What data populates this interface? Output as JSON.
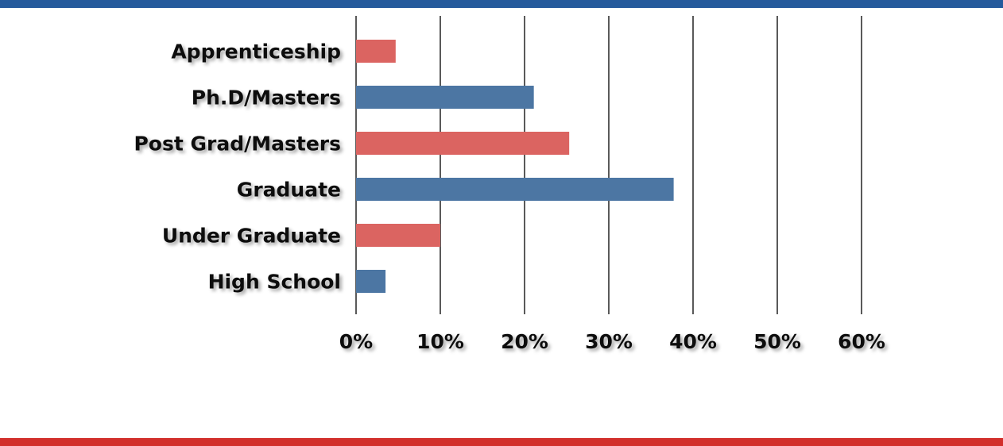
{
  "colors": {
    "top_band": "#255A9C",
    "bottom_band": "#D2302C",
    "red_bar": "#DB6461",
    "blue_bar": "#4C76A3",
    "gridline": "#000000"
  },
  "chart_data": {
    "type": "bar",
    "orientation": "horizontal",
    "categories": [
      "Apprenticeship",
      "Ph.D/Masters",
      "Post Grad/Masters",
      "Graduate",
      "Under Graduate",
      "High School"
    ],
    "values": [
      4.7,
      21.1,
      25.3,
      37.7,
      10.0,
      3.5
    ],
    "bar_colors": [
      "#DB6461",
      "#4C76A3",
      "#DB6461",
      "#4C76A3",
      "#DB6461",
      "#4C76A3"
    ],
    "unit": "%",
    "xlim": [
      0,
      60
    ],
    "xticks": [
      0,
      10,
      20,
      30,
      40,
      50,
      60
    ],
    "xtick_labels": [
      "0%",
      "10%",
      "20%",
      "30%",
      "40%",
      "50%",
      "60%"
    ],
    "grid": "vertical",
    "legend": "none",
    "title": "",
    "xlabel": "",
    "ylabel": ""
  }
}
